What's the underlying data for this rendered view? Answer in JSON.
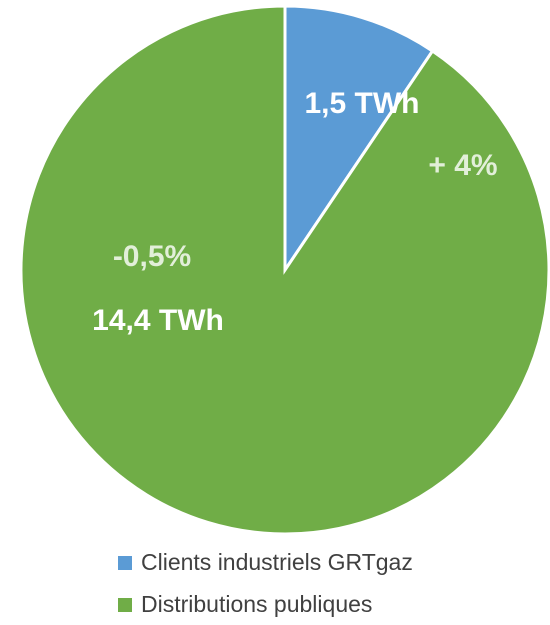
{
  "chart_data": {
    "type": "pie",
    "categories": [
      "Clients industriels GRTgaz",
      "Distributions publiques"
    ],
    "values": [
      1.5,
      14.4
    ],
    "value_labels": [
      "1,5 TWh",
      "14,4 TWh"
    ],
    "colors": [
      "#5b9bd5",
      "#70ad47"
    ],
    "annotations": [
      "+ 4%",
      "-0,5%"
    ],
    "legend": "bottom"
  }
}
